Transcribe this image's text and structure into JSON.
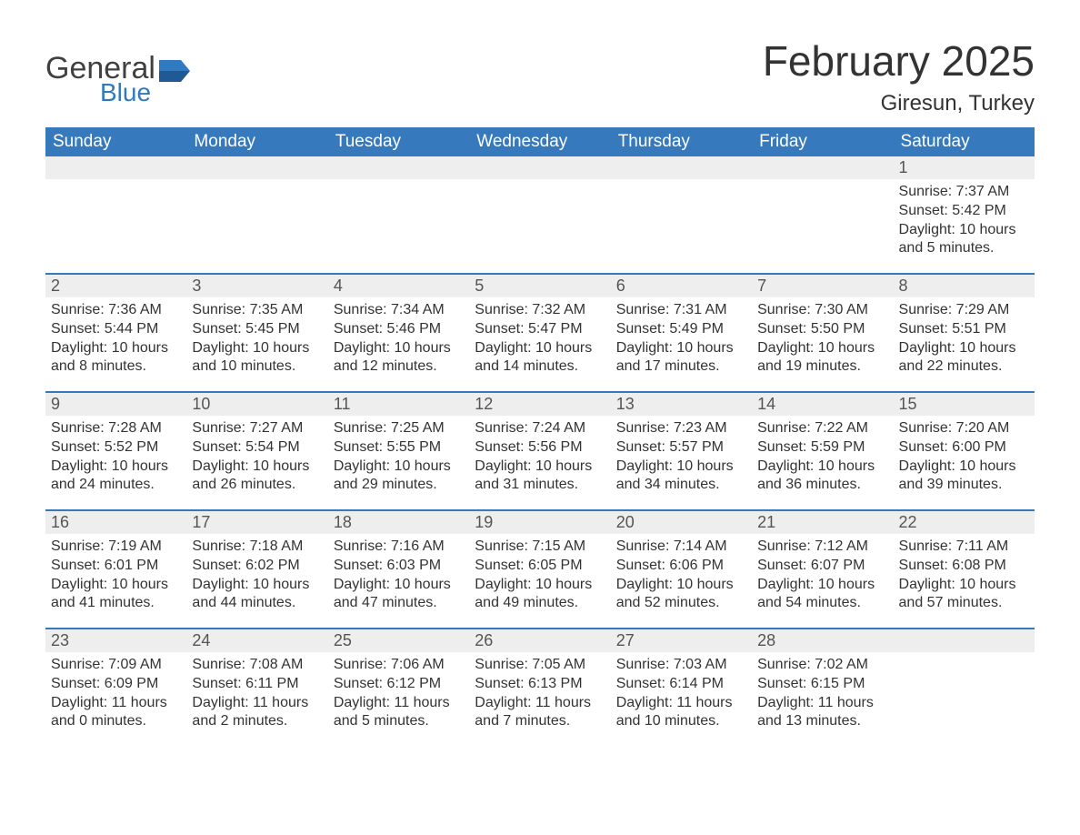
{
  "brand": {
    "part1": "General",
    "part2": "Blue",
    "accent_color": "#2f7ac0"
  },
  "header": {
    "month_title": "February 2025",
    "location": "Giresun, Turkey"
  },
  "colors": {
    "header_bg": "#3679bd",
    "header_fg": "#ffffff",
    "daynum_bg": "#eeeeee",
    "text": "#333333"
  },
  "weekdays": [
    "Sunday",
    "Monday",
    "Tuesday",
    "Wednesday",
    "Thursday",
    "Friday",
    "Saturday"
  ],
  "first_weekday_index": 6,
  "days": [
    {
      "n": 1,
      "sunrise": "7:37 AM",
      "sunset": "5:42 PM",
      "daylight": "10 hours and 5 minutes."
    },
    {
      "n": 2,
      "sunrise": "7:36 AM",
      "sunset": "5:44 PM",
      "daylight": "10 hours and 8 minutes."
    },
    {
      "n": 3,
      "sunrise": "7:35 AM",
      "sunset": "5:45 PM",
      "daylight": "10 hours and 10 minutes."
    },
    {
      "n": 4,
      "sunrise": "7:34 AM",
      "sunset": "5:46 PM",
      "daylight": "10 hours and 12 minutes."
    },
    {
      "n": 5,
      "sunrise": "7:32 AM",
      "sunset": "5:47 PM",
      "daylight": "10 hours and 14 minutes."
    },
    {
      "n": 6,
      "sunrise": "7:31 AM",
      "sunset": "5:49 PM",
      "daylight": "10 hours and 17 minutes."
    },
    {
      "n": 7,
      "sunrise": "7:30 AM",
      "sunset": "5:50 PM",
      "daylight": "10 hours and 19 minutes."
    },
    {
      "n": 8,
      "sunrise": "7:29 AM",
      "sunset": "5:51 PM",
      "daylight": "10 hours and 22 minutes."
    },
    {
      "n": 9,
      "sunrise": "7:28 AM",
      "sunset": "5:52 PM",
      "daylight": "10 hours and 24 minutes."
    },
    {
      "n": 10,
      "sunrise": "7:27 AM",
      "sunset": "5:54 PM",
      "daylight": "10 hours and 26 minutes."
    },
    {
      "n": 11,
      "sunrise": "7:25 AM",
      "sunset": "5:55 PM",
      "daylight": "10 hours and 29 minutes."
    },
    {
      "n": 12,
      "sunrise": "7:24 AM",
      "sunset": "5:56 PM",
      "daylight": "10 hours and 31 minutes."
    },
    {
      "n": 13,
      "sunrise": "7:23 AM",
      "sunset": "5:57 PM",
      "daylight": "10 hours and 34 minutes."
    },
    {
      "n": 14,
      "sunrise": "7:22 AM",
      "sunset": "5:59 PM",
      "daylight": "10 hours and 36 minutes."
    },
    {
      "n": 15,
      "sunrise": "7:20 AM",
      "sunset": "6:00 PM",
      "daylight": "10 hours and 39 minutes."
    },
    {
      "n": 16,
      "sunrise": "7:19 AM",
      "sunset": "6:01 PM",
      "daylight": "10 hours and 41 minutes."
    },
    {
      "n": 17,
      "sunrise": "7:18 AM",
      "sunset": "6:02 PM",
      "daylight": "10 hours and 44 minutes."
    },
    {
      "n": 18,
      "sunrise": "7:16 AM",
      "sunset": "6:03 PM",
      "daylight": "10 hours and 47 minutes."
    },
    {
      "n": 19,
      "sunrise": "7:15 AM",
      "sunset": "6:05 PM",
      "daylight": "10 hours and 49 minutes."
    },
    {
      "n": 20,
      "sunrise": "7:14 AM",
      "sunset": "6:06 PM",
      "daylight": "10 hours and 52 minutes."
    },
    {
      "n": 21,
      "sunrise": "7:12 AM",
      "sunset": "6:07 PM",
      "daylight": "10 hours and 54 minutes."
    },
    {
      "n": 22,
      "sunrise": "7:11 AM",
      "sunset": "6:08 PM",
      "daylight": "10 hours and 57 minutes."
    },
    {
      "n": 23,
      "sunrise": "7:09 AM",
      "sunset": "6:09 PM",
      "daylight": "11 hours and 0 minutes."
    },
    {
      "n": 24,
      "sunrise": "7:08 AM",
      "sunset": "6:11 PM",
      "daylight": "11 hours and 2 minutes."
    },
    {
      "n": 25,
      "sunrise": "7:06 AM",
      "sunset": "6:12 PM",
      "daylight": "11 hours and 5 minutes."
    },
    {
      "n": 26,
      "sunrise": "7:05 AM",
      "sunset": "6:13 PM",
      "daylight": "11 hours and 7 minutes."
    },
    {
      "n": 27,
      "sunrise": "7:03 AM",
      "sunset": "6:14 PM",
      "daylight": "11 hours and 10 minutes."
    },
    {
      "n": 28,
      "sunrise": "7:02 AM",
      "sunset": "6:15 PM",
      "daylight": "11 hours and 13 minutes."
    }
  ],
  "labels": {
    "sunrise": "Sunrise",
    "sunset": "Sunset",
    "daylight": "Daylight"
  }
}
